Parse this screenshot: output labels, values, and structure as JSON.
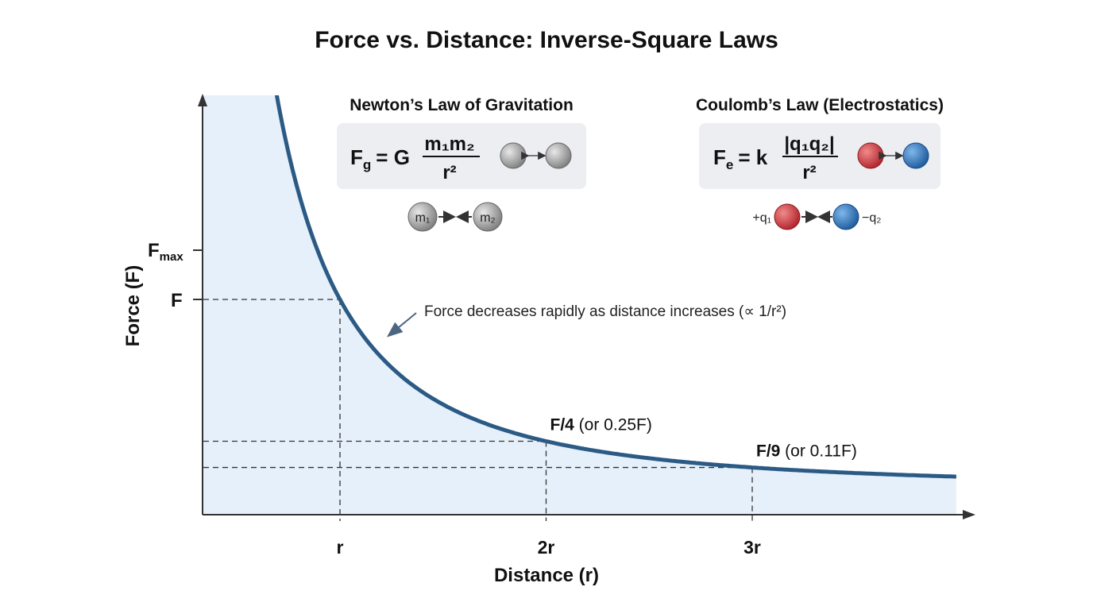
{
  "title": "Force vs. Distance: Inverse-Square Laws",
  "colors": {
    "curve": "#2b5a85",
    "fill": "#e6f0fa",
    "box": "#eceef2",
    "mass": "#9a9a9a",
    "positive": "#c8323a",
    "negative": "#2a6fb5"
  },
  "chart_data": {
    "type": "line",
    "title": "Force vs. Distance: Inverse-Square Laws",
    "xlabel": "Distance (r)",
    "ylabel": "Force (F)",
    "x_ticks": [
      "r",
      "2r",
      "3r"
    ],
    "y_ticks": [
      "F",
      "Fₘₐₓ"
    ],
    "y_tick_labels": {
      "f": "F",
      "fmax_main": "F",
      "fmax_sub": "max"
    },
    "function": "F(d) = F / d^2",
    "points": [
      {
        "x": 1,
        "y": 1,
        "label_bold": "",
        "label": ""
      },
      {
        "x": 2,
        "y": 0.25,
        "label_bold": "F/4",
        "label": " (or 0.25F)"
      },
      {
        "x": 3,
        "y": 0.111,
        "label_bold": "F/9",
        "label": " (or 0.11F)"
      }
    ],
    "annotation": "Force decreases rapidly as distance increases (∝ 1/r²)",
    "area_fill": true
  },
  "newton": {
    "heading": "Newton’s Law of Gravitation",
    "lhs": "F",
    "lhs_sub": "g",
    "eq": "= G",
    "num": "m₁m₂",
    "den": "r²",
    "m1": "m₁",
    "m2": "m₂"
  },
  "coulomb": {
    "heading": "Coulomb’s Law (Electrostatics)",
    "lhs": "F",
    "lhs_sub": "e",
    "eq": "= k",
    "num": "|q₁q₂|",
    "den": "r²",
    "q1": "+q₁",
    "q2": "−q₂"
  }
}
